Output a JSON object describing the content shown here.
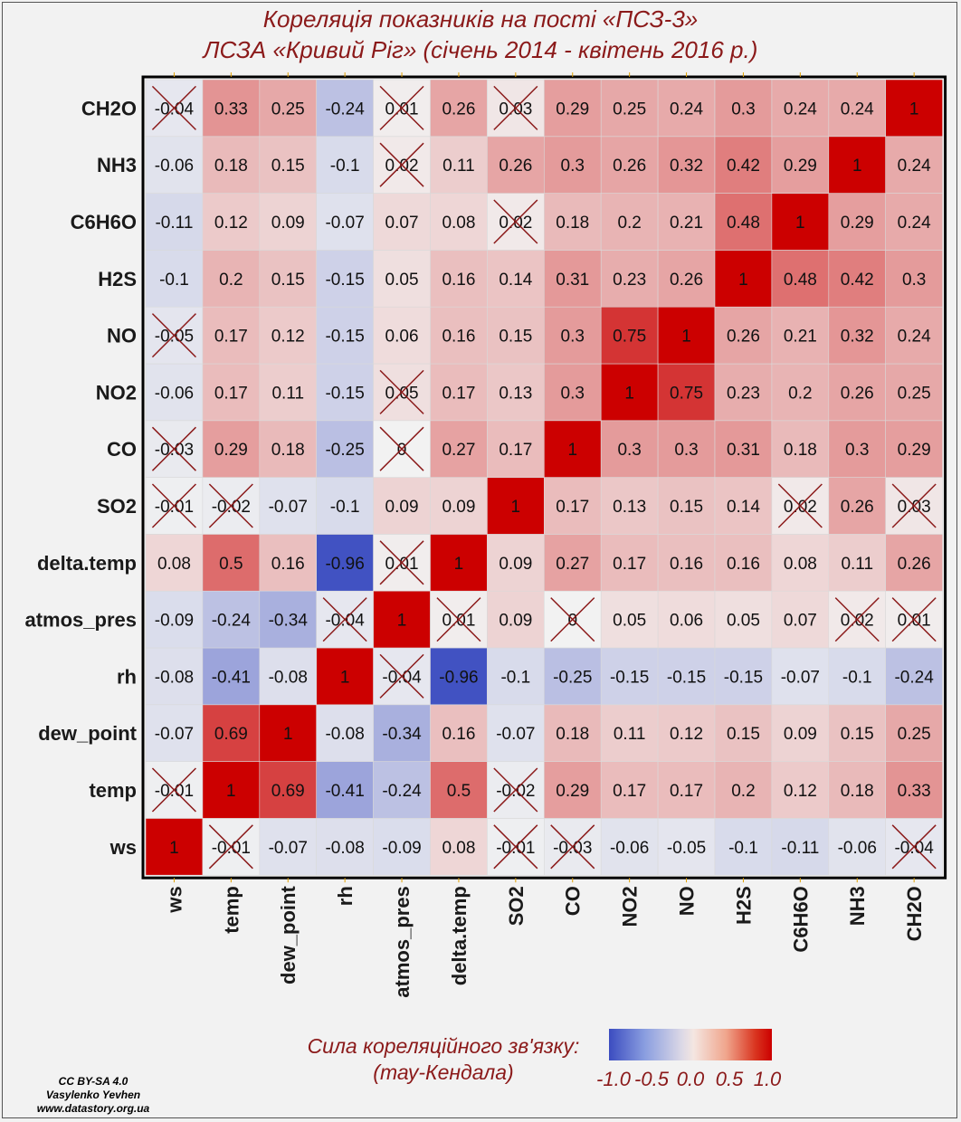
{
  "title": {
    "line1": "Кореляція показників на пості «ПСЗ-3»",
    "line2": "ЛСЗА «Кривий Ріг» (січень 2014 - квітень 2016 р.)"
  },
  "legend": {
    "title_line1": "Сила кореляційного зв'язку:",
    "title_line2": "(тау-Кендала)",
    "ticks": [
      "-1.0",
      "-0.5",
      "0.0",
      "0.5",
      "1.0"
    ],
    "low_color": "#3b4cc0",
    "mid_color": "#f2f2f2",
    "high_color": "#cc0000"
  },
  "credits": {
    "license": "CC BY-SA 4.0",
    "author": "Vasylenko Yevhen",
    "site": "www.datastory.org.ua"
  },
  "chart_data": {
    "type": "heatmap",
    "variables": [
      "ws",
      "temp",
      "dew_point",
      "rh",
      "atmos_pres",
      "delta.temp",
      "SO2",
      "CO",
      "NO2",
      "NO",
      "H2S",
      "C6H6O",
      "NH3",
      "CH2O"
    ],
    "matrix": [
      [
        1,
        -0.01,
        -0.07,
        -0.08,
        -0.09,
        0.08,
        -0.01,
        -0.03,
        -0.06,
        -0.05,
        -0.1,
        -0.11,
        -0.06,
        -0.04
      ],
      [
        -0.01,
        1,
        0.69,
        -0.41,
        -0.24,
        0.5,
        -0.02,
        0.29,
        0.17,
        0.17,
        0.2,
        0.12,
        0.18,
        0.33
      ],
      [
        -0.07,
        0.69,
        1,
        -0.08,
        -0.34,
        0.16,
        -0.07,
        0.18,
        0.11,
        0.12,
        0.15,
        0.09,
        0.15,
        0.25
      ],
      [
        -0.08,
        -0.41,
        -0.08,
        1,
        -0.04,
        -0.96,
        -0.1,
        -0.25,
        -0.15,
        -0.15,
        -0.15,
        -0.07,
        -0.1,
        -0.24
      ],
      [
        -0.09,
        -0.24,
        -0.34,
        -0.04,
        1,
        0.01,
        0.09,
        0,
        0.05,
        0.06,
        0.05,
        0.07,
        0.02,
        0.01
      ],
      [
        0.08,
        0.5,
        0.16,
        -0.96,
        0.01,
        1,
        0.09,
        0.27,
        0.17,
        0.16,
        0.16,
        0.08,
        0.11,
        0.26
      ],
      [
        -0.01,
        -0.02,
        -0.07,
        -0.1,
        0.09,
        0.09,
        1,
        0.17,
        0.13,
        0.15,
        0.14,
        0.02,
        0.26,
        0.03
      ],
      [
        -0.03,
        0.29,
        0.18,
        -0.25,
        0,
        0.27,
        0.17,
        1,
        0.3,
        0.3,
        0.31,
        0.18,
        0.3,
        0.29
      ],
      [
        -0.06,
        0.17,
        0.11,
        -0.15,
        0.05,
        0.17,
        0.13,
        0.3,
        1,
        0.75,
        0.23,
        0.2,
        0.26,
        0.25
      ],
      [
        -0.05,
        0.17,
        0.12,
        -0.15,
        0.06,
        0.16,
        0.15,
        0.3,
        0.75,
        1,
        0.26,
        0.21,
        0.32,
        0.24
      ],
      [
        -0.1,
        0.2,
        0.15,
        -0.15,
        0.05,
        0.16,
        0.14,
        0.31,
        0.23,
        0.26,
        1,
        0.48,
        0.42,
        0.3
      ],
      [
        -0.11,
        0.12,
        0.09,
        -0.07,
        0.07,
        0.08,
        0.02,
        0.18,
        0.2,
        0.21,
        0.48,
        1,
        0.29,
        0.24
      ],
      [
        -0.06,
        0.18,
        0.15,
        -0.1,
        0.02,
        0.11,
        0.26,
        0.3,
        0.26,
        0.32,
        0.42,
        0.29,
        1,
        0.24
      ],
      [
        -0.04,
        0.33,
        0.25,
        -0.24,
        0.01,
        0.26,
        0.03,
        0.29,
        0.25,
        0.24,
        0.3,
        0.24,
        0.24,
        1
      ]
    ],
    "crossed_out": [
      [
        0,
        1
      ],
      [
        0,
        6
      ],
      [
        0,
        7
      ],
      [
        0,
        13
      ],
      [
        1,
        0
      ],
      [
        1,
        6
      ],
      [
        3,
        4
      ],
      [
        4,
        3
      ],
      [
        4,
        5
      ],
      [
        4,
        7
      ],
      [
        4,
        12
      ],
      [
        4,
        13
      ],
      [
        5,
        4
      ],
      [
        6,
        0
      ],
      [
        6,
        1
      ],
      [
        6,
        11
      ],
      [
        6,
        13
      ],
      [
        7,
        0
      ],
      [
        7,
        4
      ],
      [
        8,
        4
      ],
      [
        9,
        0
      ],
      [
        11,
        6
      ],
      [
        12,
        4
      ],
      [
        13,
        0
      ],
      [
        13,
        4
      ],
      [
        13,
        6
      ]
    ],
    "value_range": [
      -1,
      1
    ],
    "row_order": "bottom-to-top",
    "column_order": "left-to-right",
    "x_tick_rotation": "vertical",
    "grid": true
  }
}
